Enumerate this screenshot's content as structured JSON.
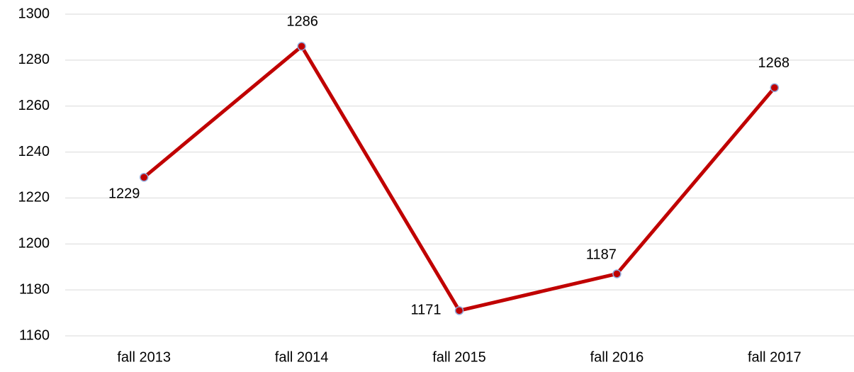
{
  "chart_data": {
    "type": "line",
    "categories": [
      "fall 2013",
      "fall 2014",
      "fall 2015",
      "fall 2016",
      "fall 2017"
    ],
    "values": [
      1229,
      1286,
      1171,
      1187,
      1268
    ],
    "color": "#c00000",
    "ylim": [
      1160,
      1300
    ],
    "yticks": [
      1160,
      1180,
      1200,
      1220,
      1240,
      1260,
      1280,
      1300
    ],
    "grid": true
  }
}
